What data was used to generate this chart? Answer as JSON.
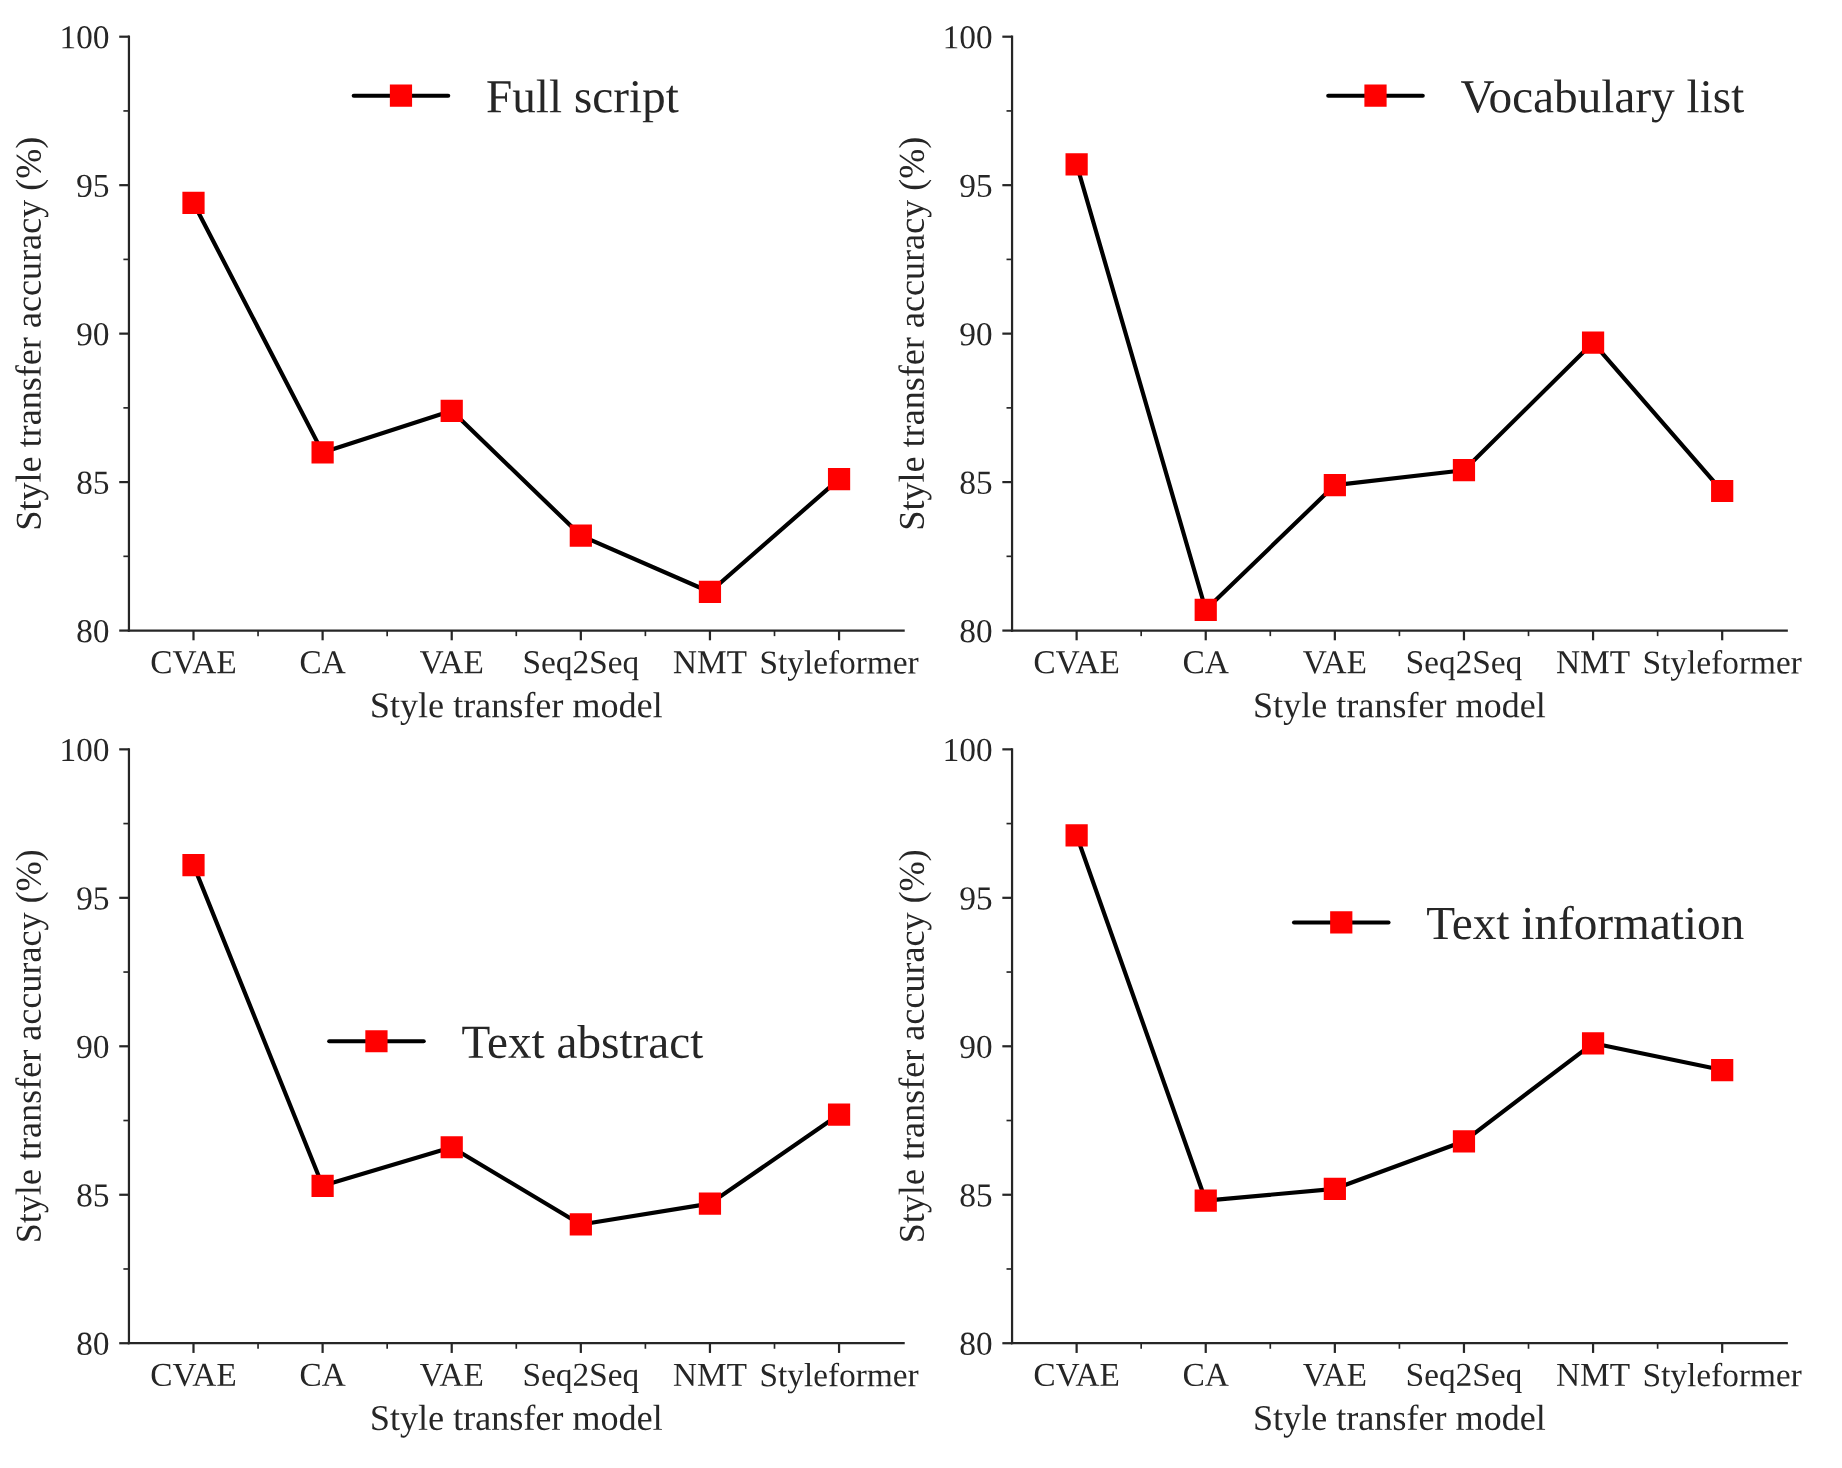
{
  "chart_data": [
    {
      "type": "line",
      "categories": [
        "CVAE",
        "CA",
        "VAE",
        "Seq2Seq",
        "NMT",
        "Styleformer"
      ],
      "xlabel": "Style transfer model",
      "ylabel": "Style transfer accuracy (%)",
      "ylim": [
        80,
        100
      ],
      "yticks": [
        80,
        85,
        90,
        95,
        100
      ],
      "marker": "square",
      "legend": "top",
      "grid": false,
      "series": [
        {
          "name": "Full script",
          "color": "#ff0000",
          "values": [
            94.4,
            86.0,
            87.4,
            83.2,
            81.3,
            85.1
          ]
        }
      ]
    },
    {
      "type": "line",
      "categories": [
        "CVAE",
        "CA",
        "VAE",
        "Seq2Seq",
        "NMT",
        "Styleformer"
      ],
      "xlabel": "Style transfer model",
      "ylabel": "Style transfer accuracy (%)",
      "ylim": [
        80,
        100
      ],
      "yticks": [
        80,
        85,
        90,
        95,
        100
      ],
      "marker": "square",
      "legend": "top right",
      "grid": false,
      "series": [
        {
          "name": "Vocabulary list",
          "color": "#ff0000",
          "values": [
            95.7,
            80.7,
            84.9,
            85.4,
            89.7,
            84.7
          ]
        }
      ]
    },
    {
      "type": "line",
      "categories": [
        "CVAE",
        "CA",
        "VAE",
        "Seq2Seq",
        "NMT",
        "Styleformer"
      ],
      "xlabel": "Style transfer model",
      "ylabel": "Style transfer accuracy (%)",
      "ylim": [
        80,
        100
      ],
      "yticks": [
        80,
        85,
        90,
        95,
        100
      ],
      "marker": "square",
      "legend": "center",
      "grid": false,
      "series": [
        {
          "name": "Text abstract",
          "color": "#ff0000",
          "values": [
            96.1,
            85.3,
            86.6,
            84.0,
            84.7,
            87.7
          ]
        }
      ]
    },
    {
      "type": "line",
      "categories": [
        "CVAE",
        "CA",
        "VAE",
        "Seq2Seq",
        "NMT",
        "Styleformer"
      ],
      "xlabel": "Style transfer model",
      "ylabel": "Style transfer accuracy (%)",
      "ylim": [
        80,
        100
      ],
      "yticks": [
        80,
        85,
        90,
        95,
        100
      ],
      "marker": "square",
      "legend": "right",
      "grid": false,
      "series": [
        {
          "name": "Text information",
          "color": "#ff0000",
          "values": [
            97.1,
            84.8,
            85.2,
            86.8,
            90.1,
            89.2
          ]
        }
      ]
    }
  ]
}
